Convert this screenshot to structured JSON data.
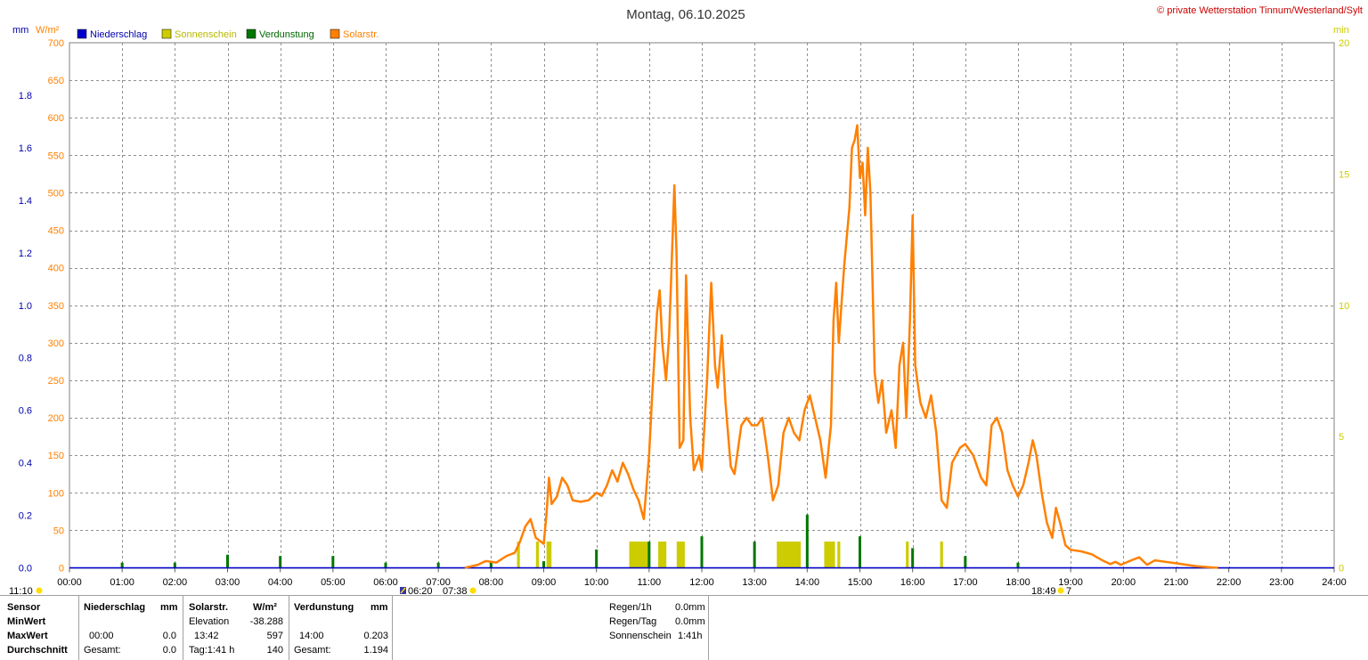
{
  "header": {
    "title": "Montag, 06.10.2025",
    "copyright": "© private Wetterstation Tinnum/Westerland/Sylt",
    "left_units": [
      "mm",
      "W/m²"
    ],
    "right_unit": "min"
  },
  "legend": [
    {
      "label": "Niederschlag",
      "color": "#0000cc"
    },
    {
      "label": "Sonnenschein",
      "color": "#cccc00"
    },
    {
      "label": "Verdunstung",
      "color": "#007700"
    },
    {
      "label": "Solarstr.",
      "color": "#ff8000"
    }
  ],
  "markers": {
    "left_time": "11:10",
    "moon_time": "06:20",
    "sunrise": "07:38",
    "sunset": "18:49",
    "sunset_suffix": "7"
  },
  "chart_data": {
    "type": "line",
    "x_ticks": [
      "00:00",
      "01:00",
      "02:00",
      "03:00",
      "04:00",
      "05:00",
      "06:00",
      "07:00",
      "08:00",
      "09:00",
      "10:00",
      "11:00",
      "12:00",
      "13:00",
      "14:00",
      "15:00",
      "16:00",
      "17:00",
      "18:00",
      "19:00",
      "20:00",
      "21:00",
      "22:00",
      "23:00",
      "24:00"
    ],
    "xlim": [
      0,
      24
    ],
    "y_left_mm": {
      "ylim": [
        0,
        2.0
      ],
      "ticks": [
        "0.0",
        "0.2",
        "0.4",
        "0.6",
        "0.8",
        "1.0",
        "1.2",
        "1.4",
        "1.6",
        "1.8"
      ]
    },
    "y_left_wm2": {
      "ylim": [
        0,
        700
      ],
      "ticks": [
        "0",
        "50",
        "100",
        "150",
        "200",
        "250",
        "300",
        "350",
        "400",
        "450",
        "500",
        "550",
        "600",
        "650",
        "700"
      ]
    },
    "y_right_min": {
      "ylim": [
        0,
        20
      ],
      "ticks": [
        "0",
        "5",
        "10",
        "15",
        "20"
      ]
    },
    "grid": true,
    "series": [
      {
        "name": "Solarstr.",
        "axis": "wm2",
        "color": "#ff8000",
        "points": [
          [
            7.5,
            0
          ],
          [
            7.75,
            4
          ],
          [
            7.9,
            9
          ],
          [
            8.1,
            7
          ],
          [
            8.3,
            16
          ],
          [
            8.45,
            20
          ],
          [
            8.55,
            35
          ],
          [
            8.65,
            55
          ],
          [
            8.75,
            65
          ],
          [
            8.85,
            40
          ],
          [
            9.0,
            32
          ],
          [
            9.05,
            70
          ],
          [
            9.1,
            120
          ],
          [
            9.15,
            85
          ],
          [
            9.25,
            95
          ],
          [
            9.35,
            120
          ],
          [
            9.45,
            110
          ],
          [
            9.55,
            90
          ],
          [
            9.7,
            88
          ],
          [
            9.85,
            90
          ],
          [
            10.0,
            100
          ],
          [
            10.1,
            96
          ],
          [
            10.2,
            110
          ],
          [
            10.3,
            130
          ],
          [
            10.4,
            115
          ],
          [
            10.5,
            140
          ],
          [
            10.6,
            125
          ],
          [
            10.7,
            105
          ],
          [
            10.8,
            90
          ],
          [
            10.9,
            65
          ],
          [
            11.0,
            150
          ],
          [
            11.05,
            220
          ],
          [
            11.15,
            340
          ],
          [
            11.2,
            370
          ],
          [
            11.25,
            300
          ],
          [
            11.32,
            250
          ],
          [
            11.38,
            310
          ],
          [
            11.42,
            390
          ],
          [
            11.48,
            510
          ],
          [
            11.52,
            420
          ],
          [
            11.58,
            160
          ],
          [
            11.65,
            170
          ],
          [
            11.7,
            390
          ],
          [
            11.78,
            200
          ],
          [
            11.85,
            130
          ],
          [
            11.95,
            150
          ],
          [
            12.0,
            130
          ],
          [
            12.1,
            250
          ],
          [
            12.18,
            380
          ],
          [
            12.25,
            270
          ],
          [
            12.3,
            240
          ],
          [
            12.38,
            310
          ],
          [
            12.45,
            220
          ],
          [
            12.55,
            135
          ],
          [
            12.62,
            125
          ],
          [
            12.75,
            190
          ],
          [
            12.85,
            200
          ],
          [
            12.95,
            190
          ],
          [
            13.05,
            190
          ],
          [
            13.15,
            200
          ],
          [
            13.25,
            150
          ],
          [
            13.35,
            90
          ],
          [
            13.45,
            110
          ],
          [
            13.55,
            180
          ],
          [
            13.65,
            200
          ],
          [
            13.75,
            180
          ],
          [
            13.85,
            170
          ],
          [
            13.95,
            210
          ],
          [
            14.05,
            230
          ],
          [
            14.15,
            200
          ],
          [
            14.25,
            170
          ],
          [
            14.35,
            120
          ],
          [
            14.45,
            190
          ],
          [
            14.5,
            330
          ],
          [
            14.55,
            380
          ],
          [
            14.6,
            300
          ],
          [
            14.7,
            400
          ],
          [
            14.8,
            480
          ],
          [
            14.85,
            560
          ],
          [
            14.9,
            570
          ],
          [
            14.95,
            590
          ],
          [
            15.0,
            520
          ],
          [
            15.05,
            540
          ],
          [
            15.1,
            470
          ],
          [
            15.15,
            560
          ],
          [
            15.2,
            500
          ],
          [
            15.28,
            260
          ],
          [
            15.35,
            220
          ],
          [
            15.42,
            250
          ],
          [
            15.5,
            180
          ],
          [
            15.6,
            210
          ],
          [
            15.68,
            160
          ],
          [
            15.75,
            270
          ],
          [
            15.82,
            300
          ],
          [
            15.88,
            200
          ],
          [
            15.95,
            330
          ],
          [
            16.0,
            470
          ],
          [
            16.05,
            270
          ],
          [
            16.15,
            220
          ],
          [
            16.25,
            200
          ],
          [
            16.35,
            230
          ],
          [
            16.45,
            180
          ],
          [
            16.55,
            90
          ],
          [
            16.65,
            80
          ],
          [
            16.75,
            140
          ],
          [
            16.9,
            160
          ],
          [
            17.0,
            165
          ],
          [
            17.15,
            150
          ],
          [
            17.3,
            120
          ],
          [
            17.4,
            110
          ],
          [
            17.5,
            190
          ],
          [
            17.6,
            200
          ],
          [
            17.7,
            180
          ],
          [
            17.8,
            130
          ],
          [
            17.9,
            110
          ],
          [
            18.0,
            95
          ],
          [
            18.1,
            110
          ],
          [
            18.2,
            140
          ],
          [
            18.28,
            170
          ],
          [
            18.35,
            150
          ],
          [
            18.45,
            100
          ],
          [
            18.55,
            60
          ],
          [
            18.65,
            40
          ],
          [
            18.72,
            80
          ],
          [
            18.8,
            60
          ],
          [
            18.9,
            30
          ],
          [
            19.0,
            24
          ],
          [
            19.2,
            22
          ],
          [
            19.4,
            18
          ],
          [
            19.6,
            10
          ],
          [
            19.75,
            5
          ],
          [
            19.85,
            8
          ],
          [
            19.95,
            4
          ],
          [
            20.15,
            10
          ],
          [
            20.3,
            14
          ],
          [
            20.45,
            4
          ],
          [
            20.6,
            10
          ],
          [
            20.8,
            8
          ],
          [
            21.0,
            6
          ],
          [
            21.2,
            4
          ],
          [
            21.4,
            2
          ],
          [
            21.6,
            1
          ],
          [
            21.8,
            0
          ]
        ]
      },
      {
        "name": "Sonnenschein",
        "axis": "min",
        "color": "#cccc00",
        "bars": [
          [
            8.52,
            1.0
          ],
          [
            8.88,
            1.0
          ],
          [
            9.08,
            1.0
          ],
          [
            9.12,
            1.0
          ],
          [
            10.65,
            1.0
          ],
          [
            10.7,
            1.0
          ],
          [
            10.75,
            1.0
          ],
          [
            10.8,
            1.0
          ],
          [
            10.85,
            1.0
          ],
          [
            10.9,
            1.0
          ],
          [
            10.95,
            1.0
          ],
          [
            11.2,
            1.0
          ],
          [
            11.25,
            1.0
          ],
          [
            11.3,
            1.0
          ],
          [
            11.55,
            1.0
          ],
          [
            11.6,
            1.0
          ],
          [
            11.65,
            1.0
          ],
          [
            13.45,
            1.0
          ],
          [
            13.5,
            1.0
          ],
          [
            13.55,
            1.0
          ],
          [
            13.6,
            1.0
          ],
          [
            13.65,
            1.0
          ],
          [
            13.7,
            1.0
          ],
          [
            13.75,
            1.0
          ],
          [
            13.8,
            1.0
          ],
          [
            13.85,
            1.0
          ],
          [
            14.35,
            1.0
          ],
          [
            14.4,
            1.0
          ],
          [
            14.45,
            1.0
          ],
          [
            14.5,
            1.0
          ],
          [
            14.6,
            1.0
          ],
          [
            15.9,
            1.0
          ],
          [
            16.55,
            1.0
          ]
        ]
      },
      {
        "name": "Verdunstung",
        "axis": "mm",
        "color": "#007700",
        "bars": [
          [
            1.0,
            0.02
          ],
          [
            2.0,
            0.02
          ],
          [
            3.0,
            0.05
          ],
          [
            4.0,
            0.045
          ],
          [
            5.0,
            0.045
          ],
          [
            6.0,
            0.02
          ],
          [
            7.0,
            0.02
          ],
          [
            8.0,
            0.02
          ],
          [
            9.0,
            0.025
          ],
          [
            10.0,
            0.07
          ],
          [
            11.0,
            0.1
          ],
          [
            12.0,
            0.12
          ],
          [
            13.0,
            0.1
          ],
          [
            14.0,
            0.203
          ],
          [
            15.0,
            0.12
          ],
          [
            16.0,
            0.075
          ],
          [
            17.0,
            0.045
          ],
          [
            18.0,
            0.02
          ]
        ]
      },
      {
        "name": "Niederschlag",
        "axis": "mm",
        "color": "#0000cc",
        "values_total": 0.0
      }
    ]
  },
  "stats": {
    "headers": {
      "sensor": "Sensor",
      "niederschlag": "Niederschlag",
      "mm1": "mm",
      "solar": "Solarstr.",
      "wm2": "W/m²",
      "verdunstung": "Verdunstung",
      "mm2": "mm"
    },
    "rows": [
      {
        "label": "MinWert",
        "n_time": "",
        "n_val": "",
        "s_time": "Elevation",
        "s_val": "-38.288",
        "v_time": "",
        "v_val": ""
      },
      {
        "label": "MaxWert",
        "n_time": "00:00",
        "n_val": "0.0",
        "s_time": "13:42",
        "s_val": "597",
        "v_time": "14:00",
        "v_val": "0.203"
      },
      {
        "label": "Durchschnitt",
        "n_time": "Gesamt:",
        "n_val": "0.0",
        "s_time": "Tag:1:41 h",
        "s_val": "140",
        "v_time": "Gesamt:",
        "v_val": "1.194"
      }
    ],
    "summary": [
      {
        "label": "Regen/1h",
        "value": "0.0mm"
      },
      {
        "label": "Regen/Tag",
        "value": "0.0mm"
      },
      {
        "label": "Sonnenschein",
        "value": "1:41h"
      }
    ]
  }
}
